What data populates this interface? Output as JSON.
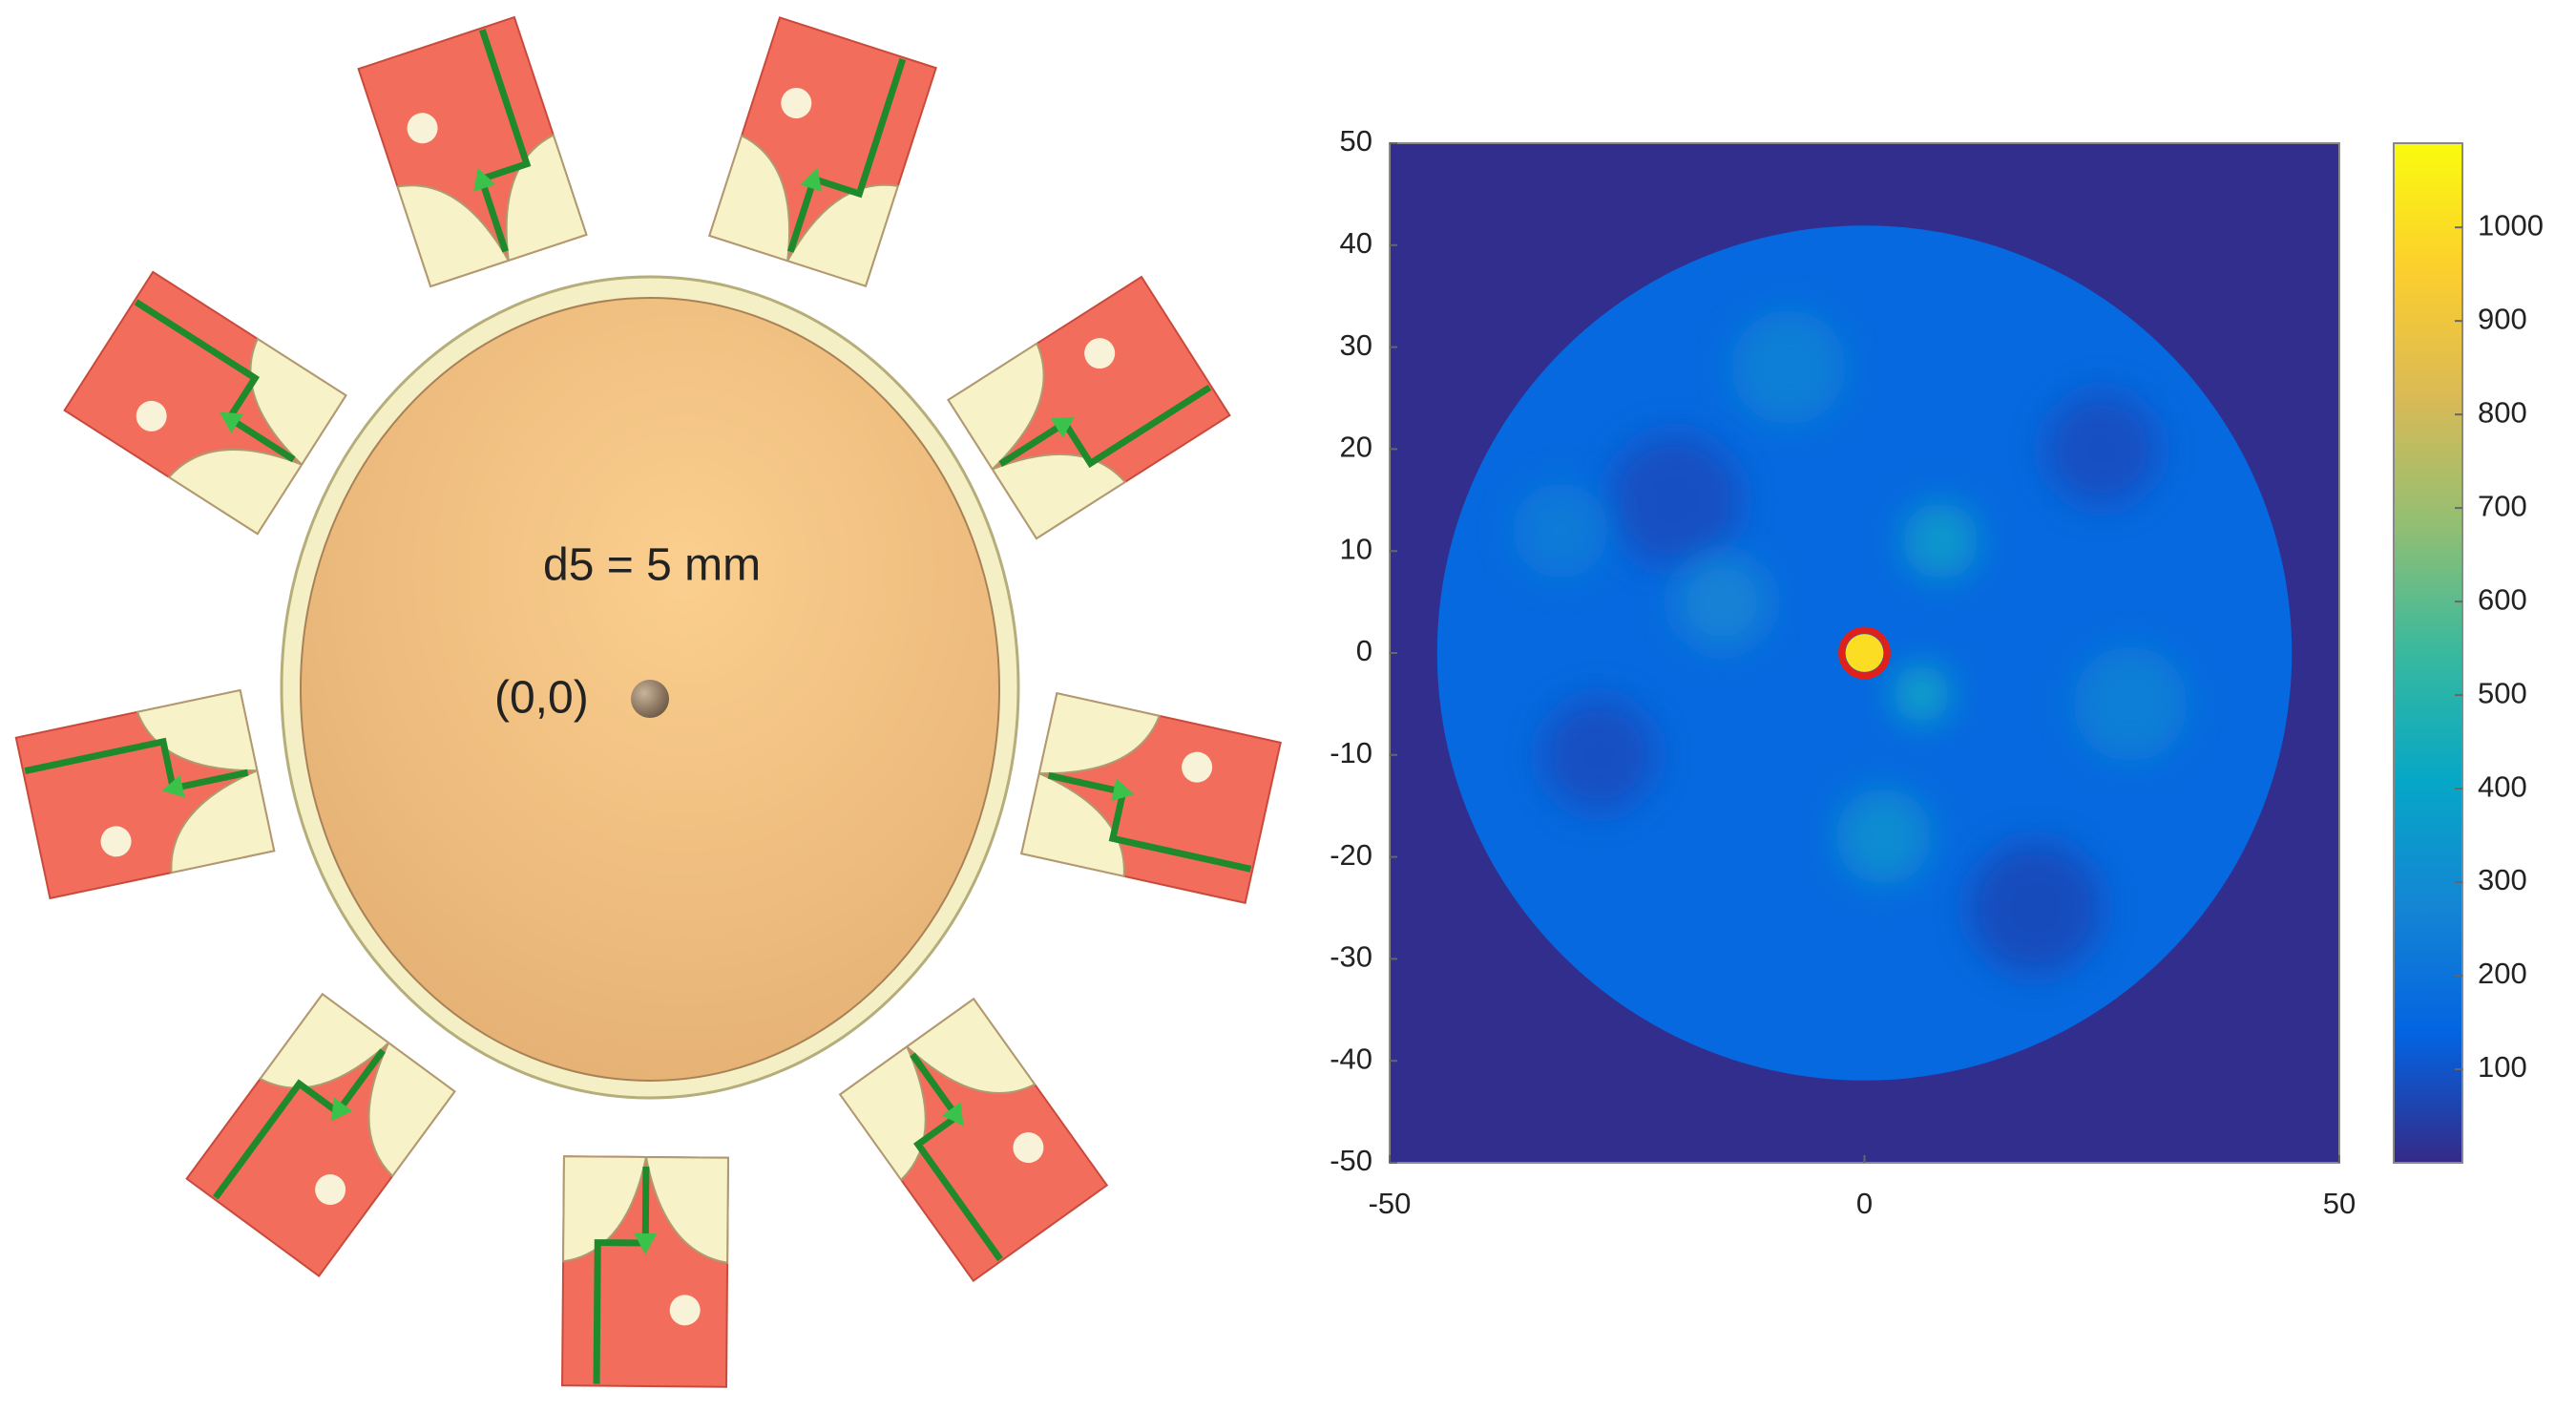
{
  "diagram": {
    "labels": [
      "d5 = 5 mm",
      "(0,0)"
    ]
  },
  "chart_data": {
    "type": "heatmap",
    "xlim": [
      -50,
      50
    ],
    "ylim": [
      -50,
      50
    ],
    "xticks": [
      -50,
      0,
      50
    ],
    "yticks": [
      -50,
      -40,
      -30,
      -20,
      -10,
      0,
      10,
      20,
      30,
      40,
      50
    ],
    "clim": [
      0,
      1090
    ],
    "cticks": [
      100,
      200,
      300,
      400,
      500,
      600,
      700,
      800,
      900,
      1000
    ],
    "colormap": [
      "#352a87",
      "#0363e1",
      "#1485d4",
      "#06a7c6",
      "#38b99e",
      "#92bf73",
      "#d9ba56",
      "#fcce2e",
      "#f9fb0e"
    ],
    "background_value": 10,
    "regions": [
      {
        "x": 0,
        "y": 0,
        "r": 45,
        "value": 160
      },
      {
        "x": -20,
        "y": 15,
        "r": 7,
        "value": 90
      },
      {
        "x": 18,
        "y": -25,
        "r": 7,
        "value": 80
      },
      {
        "x": -28,
        "y": -10,
        "r": 6,
        "value": 90
      },
      {
        "x": 25,
        "y": 20,
        "r": 6,
        "value": 90
      },
      {
        "x": 8,
        "y": 11,
        "r": 4,
        "value": 350
      },
      {
        "x": 6,
        "y": -4,
        "r": 3,
        "value": 400
      },
      {
        "x": -15,
        "y": 5,
        "r": 5,
        "value": 260
      },
      {
        "x": 2,
        "y": -18,
        "r": 5,
        "value": 300
      },
      {
        "x": -8,
        "y": 28,
        "r": 6,
        "value": 250
      },
      {
        "x": 28,
        "y": -5,
        "r": 6,
        "value": 250
      },
      {
        "x": -32,
        "y": 12,
        "r": 5,
        "value": 230
      },
      {
        "x": 0,
        "y": 0,
        "r": 2,
        "value": 1000
      }
    ],
    "marker": {
      "x": 0,
      "y": 0,
      "r": 2.4,
      "color": "#e0201a"
    }
  }
}
